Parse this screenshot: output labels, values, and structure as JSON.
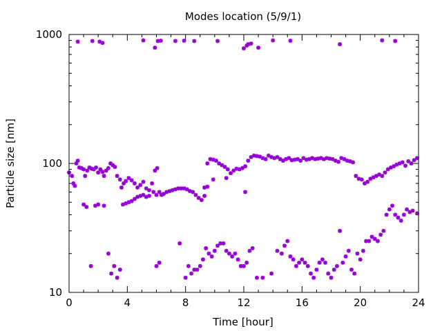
{
  "chart_data": {
    "type": "scatter",
    "title": "Modes location (5/9/1)",
    "xlabel": "Time [hour]",
    "ylabel": "Particle size [nm]",
    "xlim": [
      0,
      24
    ],
    "ylim": [
      10,
      1000
    ],
    "yscale": "log",
    "xticks": [
      0,
      4,
      8,
      12,
      16,
      20,
      24
    ],
    "xtick_labels": [
      "0",
      "4",
      "8",
      "12",
      "16",
      "20",
      "24"
    ],
    "yticks": [
      10,
      100,
      1000
    ],
    "ytick_labels": [
      "10",
      "100",
      "1000"
    ],
    "grid": false,
    "legend": "none",
    "marker_color": "#9400d3",
    "series": [
      {
        "values": [
          [
            0.0,
            85
          ],
          [
            0.2,
            80
          ],
          [
            0.3,
            70
          ],
          [
            0.4,
            67
          ],
          [
            0.5,
            100
          ],
          [
            0.6,
            105
          ],
          [
            0.7,
            93
          ],
          [
            0.85,
            92
          ],
          [
            1.0,
            90
          ],
          [
            1.1,
            80
          ],
          [
            1.25,
            88
          ],
          [
            1.4,
            93
          ],
          [
            1.55,
            91
          ],
          [
            1.7,
            90
          ],
          [
            1.85,
            93
          ],
          [
            2.0,
            85
          ],
          [
            2.15,
            90
          ],
          [
            2.3,
            86
          ],
          [
            2.4,
            80
          ],
          [
            2.55,
            88
          ],
          [
            2.7,
            92
          ],
          [
            2.85,
            100
          ],
          [
            3.0,
            97
          ],
          [
            3.15,
            94
          ],
          [
            3.3,
            80
          ],
          [
            3.5,
            75
          ],
          [
            3.6,
            65
          ],
          [
            3.75,
            70
          ],
          [
            3.9,
            73
          ],
          [
            4.1,
            77
          ],
          [
            4.3,
            74
          ],
          [
            4.5,
            70
          ],
          [
            4.7,
            65
          ],
          [
            4.9,
            68
          ],
          [
            5.1,
            72
          ],
          [
            5.3,
            64
          ],
          [
            5.5,
            62
          ],
          [
            5.7,
            70
          ],
          [
            5.9,
            88
          ],
          [
            6.05,
            92
          ],
          [
            6.2,
            60
          ],
          [
            6.35,
            57
          ],
          [
            6.5,
            58
          ],
          [
            6.7,
            60
          ],
          [
            6.9,
            61
          ],
          [
            7.1,
            62
          ],
          [
            7.3,
            63
          ],
          [
            7.5,
            64
          ],
          [
            7.7,
            64
          ],
          [
            7.9,
            64
          ],
          [
            8.1,
            63
          ],
          [
            8.3,
            61
          ],
          [
            8.5,
            60
          ],
          [
            8.7,
            57
          ],
          [
            8.9,
            54
          ],
          [
            9.1,
            52
          ],
          [
            9.3,
            56
          ],
          [
            9.5,
            100
          ],
          [
            9.7,
            108
          ],
          [
            9.9,
            107
          ],
          [
            10.1,
            105
          ],
          [
            10.3,
            100
          ],
          [
            10.5,
            97
          ],
          [
            10.7,
            94
          ],
          [
            10.9,
            90
          ],
          [
            11.1,
            84
          ],
          [
            11.3,
            88
          ],
          [
            11.5,
            91
          ],
          [
            11.7,
            90
          ],
          [
            11.9,
            92
          ],
          [
            12.1,
            95
          ],
          [
            12.3,
            105
          ],
          [
            12.5,
            112
          ],
          [
            12.7,
            115
          ],
          [
            12.9,
            114
          ],
          [
            13.1,
            113
          ],
          [
            13.3,
            110
          ],
          [
            13.5,
            108
          ],
          [
            13.7,
            115
          ],
          [
            13.9,
            112
          ],
          [
            14.1,
            110
          ],
          [
            14.3,
            112
          ],
          [
            14.5,
            108
          ],
          [
            14.7,
            105
          ],
          [
            14.9,
            108
          ],
          [
            15.1,
            110
          ],
          [
            15.3,
            106
          ],
          [
            15.5,
            107
          ],
          [
            15.7,
            108
          ],
          [
            15.9,
            105
          ],
          [
            16.1,
            110
          ],
          [
            16.3,
            107
          ],
          [
            16.5,
            108
          ],
          [
            16.7,
            110
          ],
          [
            16.9,
            108
          ],
          [
            17.1,
            109
          ],
          [
            17.3,
            110
          ],
          [
            17.5,
            108
          ],
          [
            17.7,
            110
          ],
          [
            17.9,
            109
          ],
          [
            18.1,
            108
          ],
          [
            18.3,
            105
          ],
          [
            18.5,
            103
          ],
          [
            18.7,
            110
          ],
          [
            18.9,
            108
          ],
          [
            19.1,
            105
          ],
          [
            19.3,
            104
          ],
          [
            19.5,
            102
          ],
          [
            19.7,
            80
          ],
          [
            19.9,
            76
          ],
          [
            20.1,
            75
          ],
          [
            20.3,
            70
          ],
          [
            20.5,
            72
          ],
          [
            20.7,
            76
          ],
          [
            20.9,
            78
          ],
          [
            21.1,
            80
          ],
          [
            21.3,
            82
          ],
          [
            21.5,
            80
          ],
          [
            21.7,
            85
          ],
          [
            21.9,
            90
          ],
          [
            22.1,
            93
          ],
          [
            22.3,
            95
          ],
          [
            22.5,
            98
          ],
          [
            22.7,
            100
          ],
          [
            22.9,
            102
          ],
          [
            23.1,
            96
          ],
          [
            23.3,
            104
          ],
          [
            23.5,
            100
          ],
          [
            23.7,
            106
          ],
          [
            23.9,
            110
          ],
          [
            1.0,
            48
          ],
          [
            1.2,
            46
          ],
          [
            1.8,
            47
          ],
          [
            2.0,
            48
          ],
          [
            2.4,
            47
          ],
          [
            3.7,
            48
          ],
          [
            3.9,
            49
          ],
          [
            4.1,
            50
          ],
          [
            4.3,
            51
          ],
          [
            4.5,
            53
          ],
          [
            4.7,
            55
          ],
          [
            4.9,
            56
          ],
          [
            5.1,
            57
          ],
          [
            5.3,
            55
          ],
          [
            5.5,
            56
          ],
          [
            5.8,
            60
          ],
          [
            6.0,
            57
          ],
          [
            9.3,
            65
          ],
          [
            9.5,
            66
          ],
          [
            9.9,
            75
          ],
          [
            12.1,
            60
          ],
          [
            10.8,
            77
          ],
          [
            20.8,
            27
          ],
          [
            20.6,
            25
          ],
          [
            21.0,
            26
          ],
          [
            21.2,
            25
          ],
          [
            21.4,
            28
          ],
          [
            21.6,
            30
          ],
          [
            21.8,
            40
          ],
          [
            22.0,
            44
          ],
          [
            22.2,
            47
          ],
          [
            22.4,
            40
          ],
          [
            22.6,
            38
          ],
          [
            22.8,
            36
          ],
          [
            23.0,
            40
          ],
          [
            23.2,
            44
          ],
          [
            23.4,
            42
          ],
          [
            23.6,
            43
          ],
          [
            23.9,
            41
          ],
          [
            1.5,
            16
          ],
          [
            2.7,
            20
          ],
          [
            2.9,
            14
          ],
          [
            3.1,
            16
          ],
          [
            3.3,
            13
          ],
          [
            3.5,
            15
          ],
          [
            6.0,
            16
          ],
          [
            6.2,
            17
          ],
          [
            7.6,
            24
          ],
          [
            8.0,
            13
          ],
          [
            8.2,
            16
          ],
          [
            8.4,
            14
          ],
          [
            8.6,
            15
          ],
          [
            8.8,
            15
          ],
          [
            9.0,
            16
          ],
          [
            9.2,
            18
          ],
          [
            9.4,
            22
          ],
          [
            9.6,
            20
          ],
          [
            9.8,
            19
          ],
          [
            10.0,
            21
          ],
          [
            10.2,
            23
          ],
          [
            10.4,
            24
          ],
          [
            10.6,
            24
          ],
          [
            10.8,
            21
          ],
          [
            11.0,
            20
          ],
          [
            11.2,
            19
          ],
          [
            11.4,
            20
          ],
          [
            11.6,
            18
          ],
          [
            11.8,
            16
          ],
          [
            12.0,
            16
          ],
          [
            12.2,
            17
          ],
          [
            12.4,
            21
          ],
          [
            12.6,
            22
          ],
          [
            12.9,
            13
          ],
          [
            13.3,
            13
          ],
          [
            13.9,
            14
          ],
          [
            14.3,
            21
          ],
          [
            14.6,
            20
          ],
          [
            14.8,
            23
          ],
          [
            15.0,
            25
          ],
          [
            15.2,
            19
          ],
          [
            15.4,
            18
          ],
          [
            15.6,
            16
          ],
          [
            15.8,
            17
          ],
          [
            16.0,
            18
          ],
          [
            16.2,
            17
          ],
          [
            16.4,
            16
          ],
          [
            16.6,
            14
          ],
          [
            16.8,
            13
          ],
          [
            17.0,
            15
          ],
          [
            17.2,
            17
          ],
          [
            17.4,
            18
          ],
          [
            17.6,
            17
          ],
          [
            17.8,
            14
          ],
          [
            18.0,
            13
          ],
          [
            18.2,
            15
          ],
          [
            18.4,
            16
          ],
          [
            18.6,
            30
          ],
          [
            18.8,
            17
          ],
          [
            19.0,
            19
          ],
          [
            19.2,
            21
          ],
          [
            19.4,
            15
          ],
          [
            19.6,
            14
          ],
          [
            19.8,
            20
          ],
          [
            20.0,
            18
          ],
          [
            20.2,
            21
          ],
          [
            20.4,
            25
          ],
          [
            0.6,
            880
          ],
          [
            1.6,
            890
          ],
          [
            2.1,
            880
          ],
          [
            2.3,
            860
          ],
          [
            5.1,
            900
          ],
          [
            5.9,
            790
          ],
          [
            6.1,
            890
          ],
          [
            6.3,
            895
          ],
          [
            7.3,
            890
          ],
          [
            7.9,
            895
          ],
          [
            8.6,
            890
          ],
          [
            10.2,
            890
          ],
          [
            12.0,
            780
          ],
          [
            12.2,
            820
          ],
          [
            12.3,
            840
          ],
          [
            12.5,
            850
          ],
          [
            13.0,
            790
          ],
          [
            14.0,
            900
          ],
          [
            15.2,
            895
          ],
          [
            18.6,
            840
          ],
          [
            21.5,
            900
          ],
          [
            22.4,
            890
          ]
        ]
      }
    ]
  }
}
